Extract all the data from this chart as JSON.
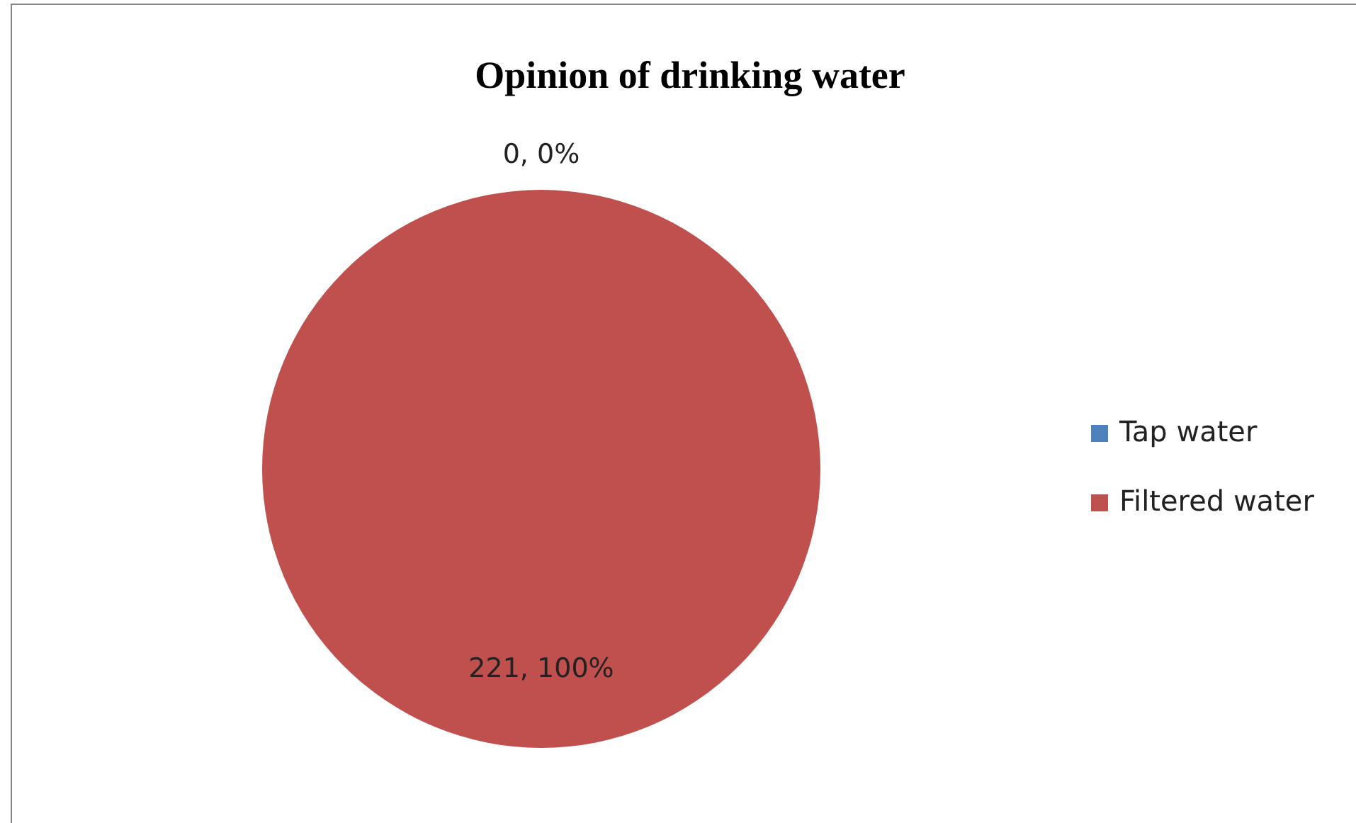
{
  "chart_data": {
    "type": "pie",
    "title": "Opinion of drinking water",
    "categories": [
      "Tap water",
      "Filtered water"
    ],
    "values": [
      0,
      221
    ],
    "colors": [
      "#4f81bd",
      "#c0504d"
    ],
    "value_labels": [
      "0, 0%",
      "221, 100%"
    ],
    "legend": "right"
  }
}
